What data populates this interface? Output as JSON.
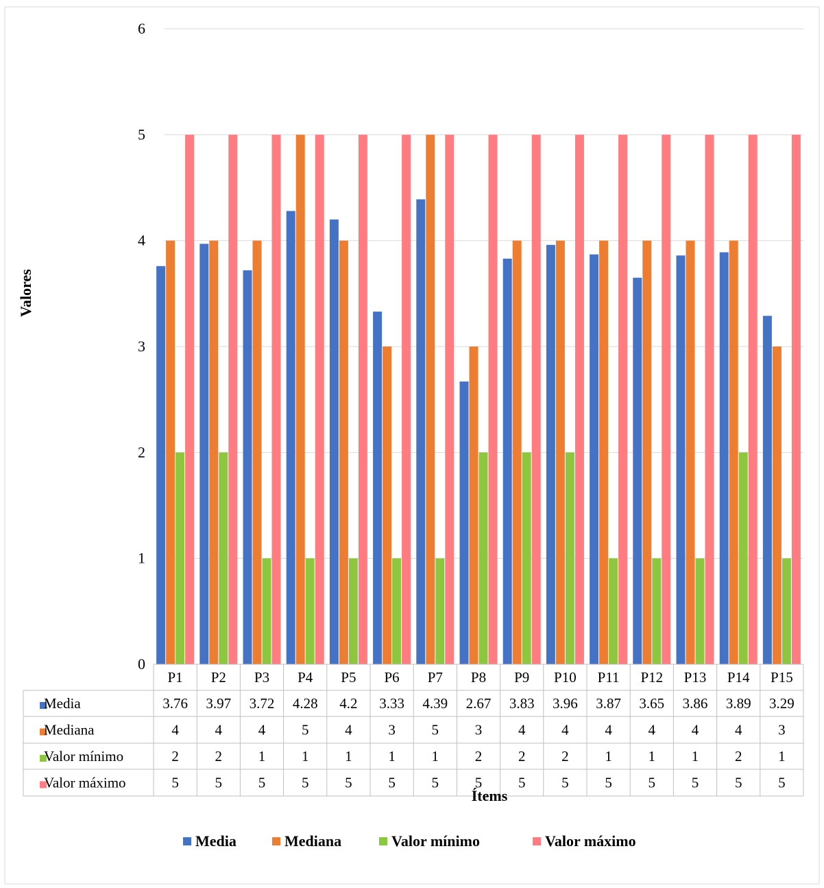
{
  "chart_data": {
    "type": "bar",
    "title": "",
    "xlabel": "Ítems",
    "ylabel": "Valores",
    "ylim": [
      0,
      6
    ],
    "yticks": [
      0,
      1,
      2,
      3,
      4,
      5,
      6
    ],
    "grid": true,
    "legend_position": "bottom",
    "data_table": true,
    "categories": [
      "P1",
      "P2",
      "P3",
      "P4",
      "P5",
      "P6",
      "P7",
      "P8",
      "P9",
      "P10",
      "P11",
      "P12",
      "P13",
      "P14",
      "P15"
    ],
    "series": [
      {
        "name": "Media",
        "color": "#4472C4",
        "values": [
          3.76,
          3.97,
          3.72,
          4.28,
          4.2,
          3.33,
          4.39,
          2.67,
          3.83,
          3.96,
          3.87,
          3.65,
          3.86,
          3.89,
          3.29
        ]
      },
      {
        "name": "Mediana",
        "color": "#ED7D31",
        "values": [
          4,
          4,
          4,
          5,
          4,
          3,
          5,
          3,
          4,
          4,
          4,
          4,
          4,
          4,
          3
        ]
      },
      {
        "name": "Valor mínimo",
        "color": "#8DC63F",
        "values": [
          2,
          2,
          1,
          1,
          1,
          1,
          1,
          2,
          2,
          2,
          1,
          1,
          1,
          2,
          1
        ]
      },
      {
        "name": "Valor máximo",
        "color": "#FF7C80",
        "values": [
          5,
          5,
          5,
          5,
          5,
          5,
          5,
          5,
          5,
          5,
          5,
          5,
          5,
          5,
          5
        ]
      }
    ]
  }
}
